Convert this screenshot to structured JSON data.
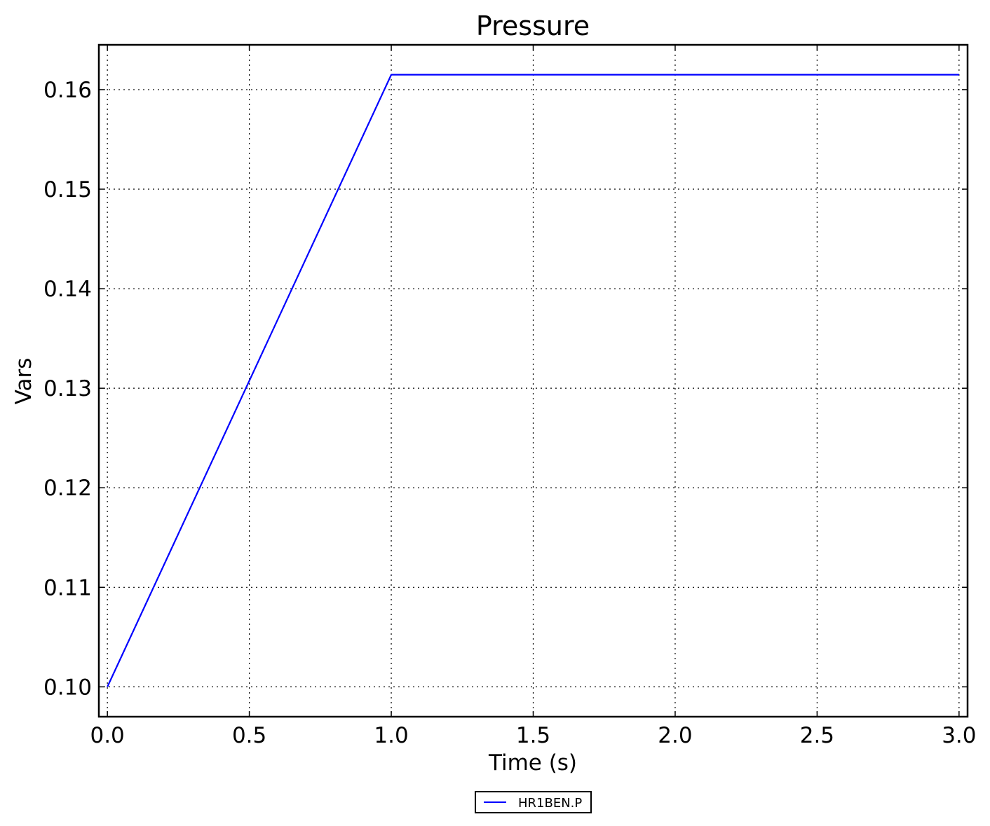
{
  "chart_data": {
    "type": "line",
    "title": "Pressure",
    "xlabel": "Time (s)",
    "ylabel": "Vars",
    "xlim": [
      -0.03,
      3.03
    ],
    "ylim": [
      0.097,
      0.1645
    ],
    "x_ticks": [
      0.0,
      0.5,
      1.0,
      1.5,
      2.0,
      2.5,
      3.0
    ],
    "x_tick_labels": [
      "0.0",
      "0.5",
      "1.0",
      "1.5",
      "2.0",
      "2.5",
      "3.0"
    ],
    "y_ticks": [
      0.1,
      0.11,
      0.12,
      0.13,
      0.14,
      0.15,
      0.16
    ],
    "y_tick_labels": [
      "0.10",
      "0.11",
      "0.12",
      "0.13",
      "0.14",
      "0.15",
      "0.16"
    ],
    "grid": true,
    "legend_position": "bottom-center",
    "series": [
      {
        "name": "HR1BEN.P",
        "color": "#0000ff",
        "x": [
          0.0,
          1.0,
          3.0
        ],
        "y": [
          0.1,
          0.1615,
          0.1615
        ]
      }
    ]
  }
}
